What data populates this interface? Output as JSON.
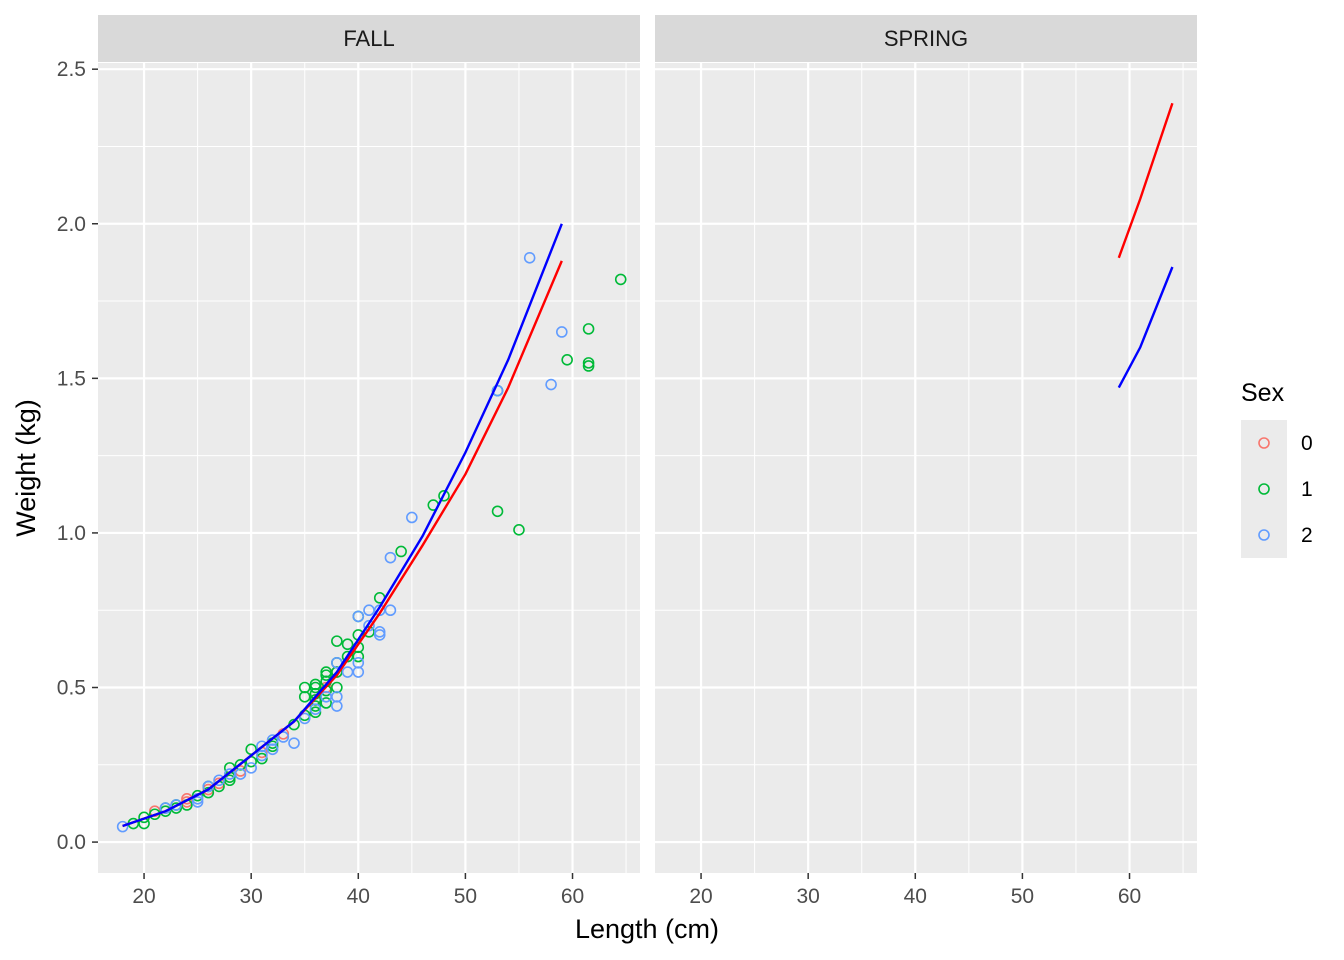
{
  "chart_data": {
    "type": "scatter",
    "xlabel": "Length (cm)",
    "ylabel": "Weight (kg)",
    "xlim": [
      15.7,
      66.3
    ],
    "ylim": [
      -0.1,
      2.52
    ],
    "x_ticks": [
      20,
      30,
      40,
      50,
      60
    ],
    "x_tick_labels": [
      "20",
      "30",
      "40",
      "50",
      "60"
    ],
    "y_ticks": [
      0.0,
      0.5,
      1.0,
      1.5,
      2.0,
      2.5
    ],
    "y_tick_labels": [
      "0.0",
      "0.5",
      "1.0",
      "1.5",
      "2.0",
      "2.5"
    ],
    "grid": true,
    "legend": {
      "title": "Sex",
      "position": "right",
      "entries": [
        {
          "label": "0",
          "color": "#F8766D"
        },
        {
          "label": "1",
          "color": "#00BA38"
        },
        {
          "label": "2",
          "color": "#619CFF"
        }
      ]
    },
    "panels": [
      {
        "strip": "FALL",
        "points": {
          "0": [
            [
              24,
              0.14
            ],
            [
              24,
              0.13
            ],
            [
              21,
              0.1
            ],
            [
              26,
              0.17
            ],
            [
              27,
              0.19
            ],
            [
              29,
              0.23
            ],
            [
              31,
              0.29
            ],
            [
              33,
              0.35
            ],
            [
              36,
              0.46
            ],
            [
              37,
              0.5
            ],
            [
              38,
              0.55
            ]
          ],
          "1": [
            [
              19,
              0.06
            ],
            [
              20,
              0.08
            ],
            [
              20,
              0.06
            ],
            [
              21,
              0.09
            ],
            [
              22,
              0.1
            ],
            [
              22,
              0.11
            ],
            [
              23,
              0.11
            ],
            [
              23,
              0.12
            ],
            [
              24,
              0.12
            ],
            [
              25,
              0.15
            ],
            [
              26,
              0.16
            ],
            [
              26,
              0.18
            ],
            [
              27,
              0.18
            ],
            [
              28,
              0.2
            ],
            [
              28,
              0.21
            ],
            [
              28,
              0.24
            ],
            [
              29,
              0.25
            ],
            [
              30,
              0.26
            ],
            [
              30,
              0.3
            ],
            [
              31,
              0.27
            ],
            [
              32,
              0.31
            ],
            [
              32,
              0.32
            ],
            [
              34,
              0.38
            ],
            [
              35,
              0.41
            ],
            [
              35,
              0.47
            ],
            [
              35,
              0.5
            ],
            [
              36,
              0.42
            ],
            [
              36,
              0.44
            ],
            [
              36,
              0.46
            ],
            [
              36,
              0.48
            ],
            [
              36,
              0.5
            ],
            [
              36,
              0.51
            ],
            [
              37,
              0.45
            ],
            [
              37,
              0.49
            ],
            [
              37,
              0.52
            ],
            [
              37,
              0.54
            ],
            [
              37,
              0.55
            ],
            [
              38,
              0.5
            ],
            [
              38,
              0.55
            ],
            [
              38,
              0.58
            ],
            [
              38,
              0.65
            ],
            [
              39,
              0.6
            ],
            [
              39,
              0.64
            ],
            [
              40,
              0.6
            ],
            [
              40,
              0.63
            ],
            [
              40,
              0.67
            ],
            [
              40,
              0.73
            ],
            [
              41,
              0.68
            ],
            [
              42,
              0.79
            ],
            [
              44,
              0.94
            ],
            [
              47,
              1.09
            ],
            [
              48,
              1.12
            ],
            [
              53,
              1.46
            ],
            [
              53,
              1.07
            ],
            [
              55,
              1.01
            ],
            [
              59.5,
              1.56
            ],
            [
              61.5,
              1.66
            ],
            [
              61.5,
              1.55
            ],
            [
              61.5,
              1.54
            ],
            [
              64.5,
              1.82
            ]
          ],
          "2": [
            [
              18,
              0.05
            ],
            [
              22,
              0.11
            ],
            [
              23,
              0.12
            ],
            [
              25,
              0.14
            ],
            [
              25,
              0.13
            ],
            [
              26,
              0.18
            ],
            [
              27,
              0.2
            ],
            [
              28,
              0.22
            ],
            [
              29,
              0.22
            ],
            [
              30,
              0.24
            ],
            [
              31,
              0.28
            ],
            [
              31,
              0.31
            ],
            [
              32,
              0.3
            ],
            [
              32,
              0.33
            ],
            [
              33,
              0.34
            ],
            [
              34,
              0.32
            ],
            [
              35,
              0.4
            ],
            [
              36,
              0.43
            ],
            [
              37,
              0.47
            ],
            [
              38,
              0.44
            ],
            [
              38,
              0.47
            ],
            [
              38,
              0.58
            ],
            [
              39,
              0.55
            ],
            [
              40,
              0.55
            ],
            [
              40,
              0.58
            ],
            [
              40,
              0.73
            ],
            [
              41,
              0.7
            ],
            [
              41,
              0.75
            ],
            [
              42,
              0.67
            ],
            [
              42,
              0.68
            ],
            [
              42,
              0.75
            ],
            [
              43,
              0.75
            ],
            [
              43,
              0.92
            ],
            [
              45,
              1.05
            ],
            [
              53,
              1.46
            ],
            [
              56,
              1.89
            ],
            [
              58,
              1.48
            ],
            [
              59,
              1.65
            ]
          ]
        },
        "fit_lines": [
          {
            "name": "red",
            "color": "#ff0000",
            "points": [
              [
                18,
                0.052
              ],
              [
                22,
                0.1
              ],
              [
                26,
                0.17
              ],
              [
                30,
                0.28
              ],
              [
                34,
                0.39
              ],
              [
                38,
                0.54
              ],
              [
                42,
                0.74
              ],
              [
                46,
                0.96
              ],
              [
                50,
                1.19
              ],
              [
                54,
                1.47
              ],
              [
                59,
                1.88
              ]
            ]
          },
          {
            "name": "blue",
            "color": "#0000ff",
            "points": [
              [
                18,
                0.052
              ],
              [
                22,
                0.1
              ],
              [
                26,
                0.17
              ],
              [
                30,
                0.28
              ],
              [
                34,
                0.39
              ],
              [
                38,
                0.55
              ],
              [
                42,
                0.76
              ],
              [
                46,
                0.99
              ],
              [
                50,
                1.26
              ],
              [
                54,
                1.56
              ],
              [
                59,
                2.0
              ]
            ]
          }
        ]
      },
      {
        "strip": "SPRING",
        "points": {
          "0": [],
          "1": [],
          "2": []
        },
        "fit_lines": [
          {
            "name": "red",
            "color": "#ff0000",
            "points": [
              [
                59,
                1.89
              ],
              [
                61,
                2.08
              ],
              [
                64,
                2.39
              ]
            ]
          },
          {
            "name": "blue",
            "color": "#0000ff",
            "points": [
              [
                59,
                1.47
              ],
              [
                61,
                1.6
              ],
              [
                64,
                1.86
              ]
            ]
          }
        ]
      }
    ]
  }
}
